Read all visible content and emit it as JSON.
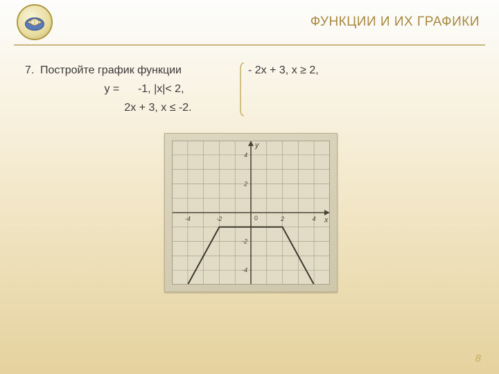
{
  "header": {
    "title": "ФУНКЦИИ И ИХ ГРАФИКИ",
    "title_color": "#a68a3e"
  },
  "page_number": "8",
  "problem": {
    "number": "7.",
    "line1_left": "Постройте график функции",
    "line1_right": "- 2x + 3, x ≥ 2,",
    "line2": "y =      -1, |x|< 2,",
    "line3": "2x + 3, x ≤ -2."
  },
  "chart": {
    "type": "line",
    "xlim": [
      -5,
      5
    ],
    "ylim": [
      -5,
      5
    ],
    "xtick_labels": [
      {
        "v": -4,
        "t": "-4"
      },
      {
        "v": -2,
        "t": "-2"
      },
      {
        "v": 2,
        "t": "2"
      },
      {
        "v": 4,
        "t": "4"
      }
    ],
    "ytick_labels": [
      {
        "v": -4,
        "t": "-4"
      },
      {
        "v": -2,
        "t": "-2"
      },
      {
        "v": 2,
        "t": "2"
      },
      {
        "v": 4,
        "t": "4"
      }
    ],
    "origin_label": "0",
    "x_axis_label": "x",
    "y_axis_label": "y",
    "grid_step": 1,
    "grid_color": "#a8a08a",
    "axis_color": "#4a4438",
    "background_color": "#e2dcc6",
    "series": [
      {
        "points": [
          [
            -4.5,
            -6
          ],
          [
            -2,
            -1
          ],
          [
            2,
            -1
          ],
          [
            4.5,
            -6
          ]
        ],
        "color": "#3d382e",
        "width": 2
      }
    ]
  }
}
